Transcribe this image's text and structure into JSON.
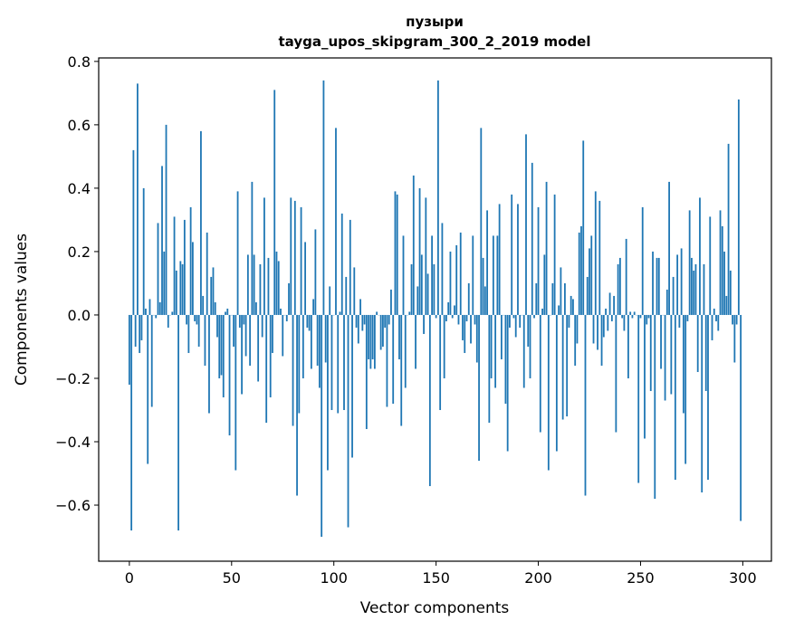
{
  "chart_data": {
    "type": "bar",
    "title": "пузыри",
    "subtitle": "tayga_upos_skipgram_300_2_2019 model",
    "xlabel": "Vector components",
    "ylabel": "Components values",
    "xlim": [
      -15,
      314
    ],
    "ylim": [
      -0.777,
      0.811
    ],
    "xticks": [
      0,
      50,
      100,
      150,
      200,
      250,
      300
    ],
    "xtick_labels": [
      "0",
      "50",
      "100",
      "150",
      "200",
      "250",
      "300"
    ],
    "yticks": [
      -0.6,
      -0.4,
      -0.2,
      0.0,
      0.2,
      0.4,
      0.6,
      0.8
    ],
    "ytick_labels": [
      "−0.6",
      "−0.4",
      "−0.2",
      "0.0",
      "0.2",
      "0.4",
      "0.6",
      "0.8"
    ],
    "grid": false,
    "bar_color": "#1f77b4",
    "values": [
      -0.22,
      -0.68,
      0.52,
      -0.1,
      0.73,
      -0.12,
      -0.08,
      0.4,
      0.02,
      -0.47,
      0.05,
      -0.29,
      0.0,
      -0.01,
      0.29,
      0.04,
      0.47,
      0.2,
      0.6,
      -0.04,
      0.0,
      0.01,
      0.31,
      0.14,
      -0.68,
      0.17,
      0.16,
      0.3,
      -0.03,
      -0.12,
      0.34,
      0.23,
      -0.02,
      -0.03,
      -0.1,
      0.58,
      0.06,
      -0.16,
      0.26,
      -0.31,
      0.12,
      0.15,
      0.04,
      -0.07,
      -0.2,
      -0.19,
      -0.26,
      0.01,
      0.02,
      -0.38,
      0.0,
      -0.1,
      -0.49,
      0.39,
      -0.04,
      -0.25,
      -0.03,
      -0.13,
      0.19,
      -0.16,
      0.42,
      0.19,
      0.04,
      -0.21,
      0.16,
      -0.07,
      0.37,
      -0.34,
      0.18,
      -0.26,
      -0.12,
      0.71,
      0.2,
      0.17,
      0.02,
      -0.13,
      0.0,
      -0.02,
      0.1,
      0.37,
      -0.35,
      0.36,
      -0.57,
      -0.31,
      0.34,
      -0.2,
      0.23,
      -0.04,
      -0.05,
      -0.17,
      0.05,
      0.27,
      -0.16,
      -0.23,
      -0.7,
      0.74,
      -0.15,
      -0.49,
      0.09,
      -0.3,
      0.0,
      0.59,
      -0.31,
      0.01,
      0.32,
      -0.3,
      0.12,
      -0.67,
      0.3,
      -0.45,
      0.15,
      -0.04,
      -0.09,
      0.05,
      -0.05,
      -0.03,
      -0.36,
      -0.14,
      -0.17,
      -0.14,
      -0.17,
      0.01,
      0.0,
      -0.11,
      -0.1,
      -0.04,
      -0.29,
      -0.03,
      0.08,
      -0.28,
      0.39,
      0.38,
      -0.14,
      -0.35,
      0.25,
      -0.23,
      0.0,
      0.01,
      0.16,
      0.44,
      -0.17,
      0.09,
      0.4,
      0.19,
      -0.06,
      0.37,
      0.13,
      -0.54,
      0.25,
      0.16,
      -0.01,
      0.74,
      -0.3,
      0.29,
      -0.2,
      -0.02,
      0.04,
      0.2,
      -0.01,
      0.03,
      0.22,
      -0.03,
      0.26,
      -0.08,
      -0.12,
      -0.02,
      0.1,
      -0.09,
      0.25,
      -0.03,
      -0.15,
      -0.46,
      0.59,
      0.18,
      0.09,
      0.33,
      -0.34,
      -0.2,
      0.25,
      -0.23,
      0.25,
      0.35,
      -0.14,
      0.0,
      -0.28,
      -0.43,
      -0.04,
      0.38,
      -0.01,
      -0.07,
      0.35,
      -0.04,
      0.0,
      -0.23,
      0.57,
      -0.1,
      -0.2,
      0.48,
      -0.01,
      0.1,
      0.34,
      -0.37,
      0.02,
      0.19,
      0.42,
      -0.49,
      0.0,
      0.1,
      0.38,
      -0.43,
      0.03,
      0.15,
      -0.33,
      0.1,
      -0.32,
      -0.04,
      0.06,
      0.05,
      -0.16,
      -0.09,
      0.26,
      0.28,
      0.55,
      -0.57,
      0.12,
      0.21,
      0.25,
      -0.09,
      0.39,
      -0.11,
      0.36,
      -0.16,
      -0.07,
      0.02,
      -0.05,
      0.07,
      -0.02,
      0.06,
      -0.37,
      0.16,
      0.18,
      -0.01,
      -0.05,
      0.24,
      -0.2,
      0.01,
      -0.01,
      0.01,
      0.0,
      -0.53,
      -0.01,
      0.34,
      -0.39,
      -0.03,
      -0.01,
      -0.24,
      0.2,
      -0.58,
      0.18,
      0.18,
      -0.17,
      0.0,
      -0.27,
      0.08,
      0.42,
      -0.25,
      0.12,
      -0.52,
      0.19,
      -0.04,
      0.21,
      -0.31,
      -0.47,
      -0.02,
      0.33,
      0.18,
      0.14,
      0.16,
      -0.18,
      0.37,
      -0.56,
      0.16,
      -0.24,
      -0.52,
      0.31,
      -0.08,
      0.02,
      -0.02,
      -0.05,
      0.33,
      0.28,
      0.2,
      0.06,
      0.54,
      0.14,
      -0.03,
      -0.15,
      -0.03,
      0.68,
      -0.65
    ]
  }
}
